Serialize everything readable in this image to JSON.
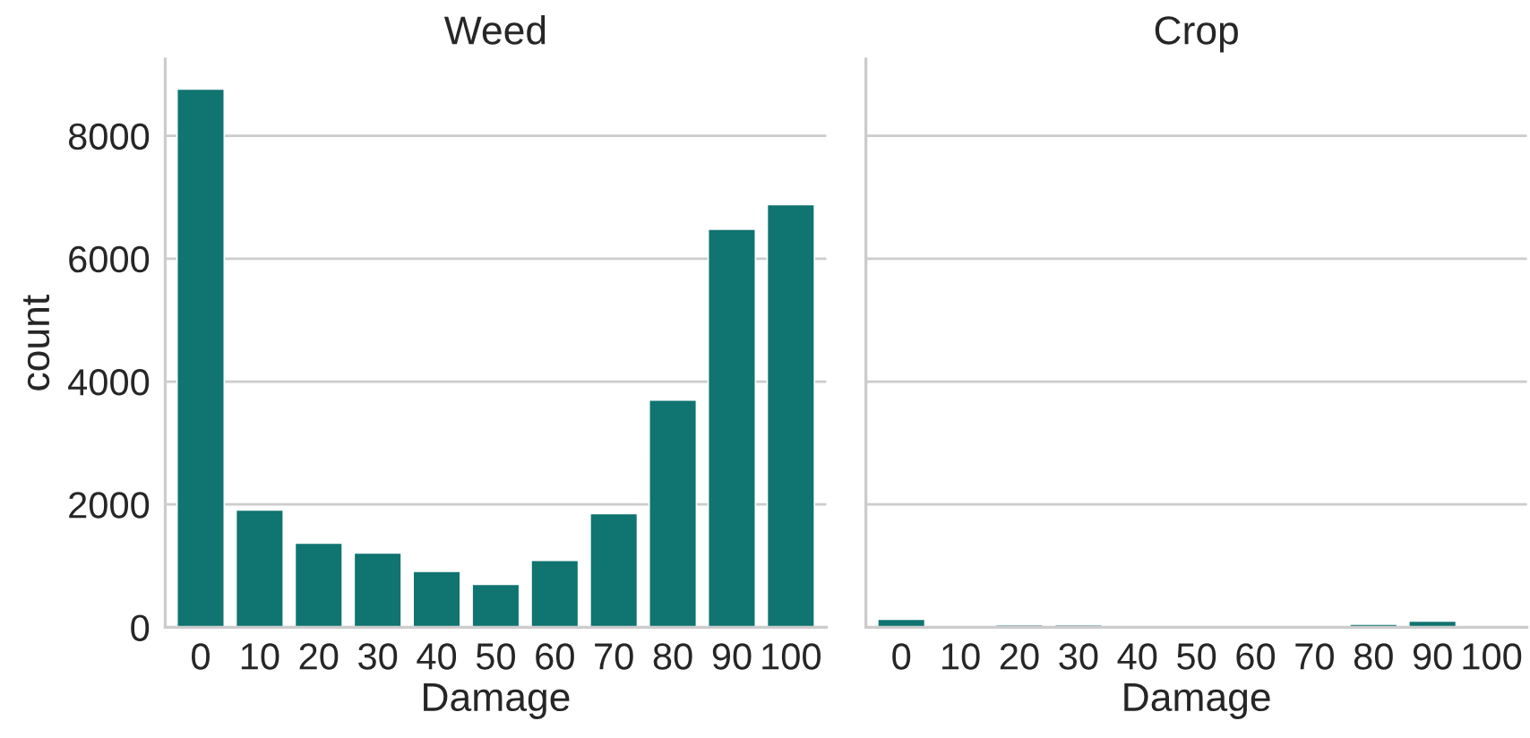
{
  "chart_data": [
    {
      "type": "bar",
      "title": "Weed",
      "xlabel": "Damage",
      "ylabel": "count",
      "categories": [
        "0",
        "10",
        "20",
        "30",
        "40",
        "50",
        "60",
        "70",
        "80",
        "90",
        "100"
      ],
      "color": "#107470",
      "values": [
        8760,
        1910,
        1370,
        1210,
        910,
        700,
        1090,
        1850,
        3700,
        6480,
        6880
      ],
      "ylim": [
        0,
        9250
      ],
      "yticks": [
        0,
        2000,
        4000,
        6000,
        8000
      ],
      "grid": "y"
    },
    {
      "type": "bar",
      "title": "Crop",
      "xlabel": "Damage",
      "categories": [
        "0",
        "10",
        "20",
        "30",
        "40",
        "50",
        "60",
        "70",
        "80",
        "90",
        "100"
      ],
      "color": "#107470",
      "values": [
        130,
        0,
        40,
        40,
        0,
        0,
        0,
        0,
        50,
        100,
        0
      ],
      "ylim": [
        0,
        9250
      ],
      "yticks": [
        0,
        2000,
        4000,
        6000,
        8000
      ],
      "grid": "y",
      "tick_labels": "x"
    }
  ]
}
